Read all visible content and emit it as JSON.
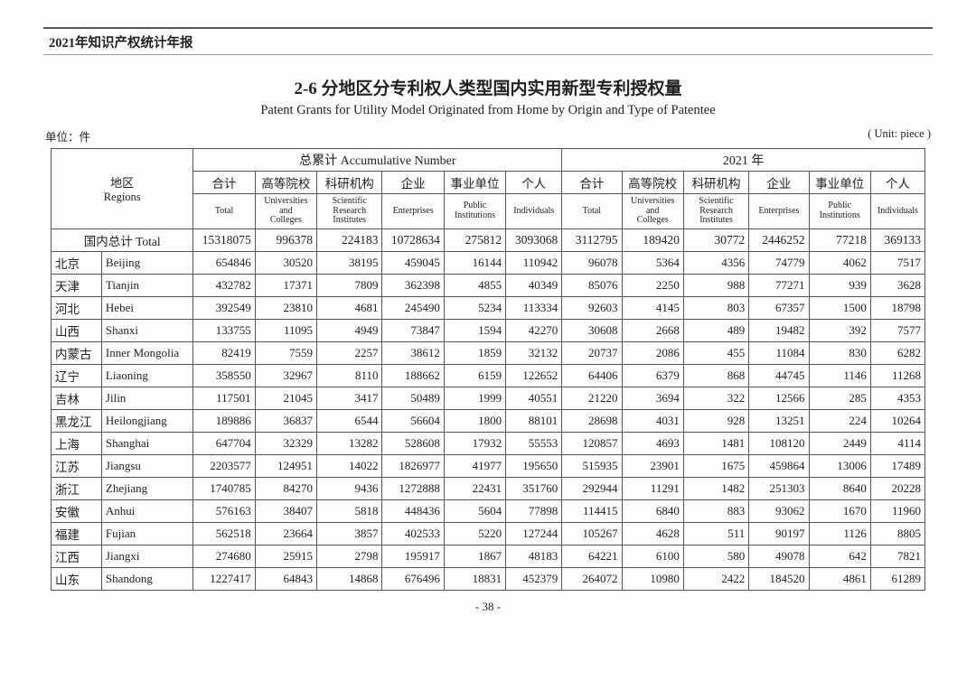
{
  "header": "2021年知识产权统计年报",
  "title_cn": "2-6  分地区分专利权人类型国内实用新型专利授权量",
  "title_en": "Patent Grants for Utility Model Originated from Home by Origin and Type of Patentee",
  "unit_left": "单位：件",
  "unit_right": "( Unit: piece )",
  "page_num": "- 38 -",
  "groups": {
    "acc": "总累计 Accumulative Number",
    "yr": "2021 年"
  },
  "region_label": {
    "cn": "地区",
    "en": "Regions"
  },
  "cols_cn": [
    "合计",
    "高等院校",
    "科研机构",
    "企业",
    "事业单位",
    "个人"
  ],
  "cols_en": [
    "Total",
    "Universities and Colleges",
    "Scientific Research Institutes",
    "Enterprises",
    "Public Institutions",
    "Individuals"
  ],
  "total_label": "国内总计 Total",
  "total": {
    "acc": [
      "15318075",
      "996378",
      "224183",
      "10728634",
      "275812",
      "3093068"
    ],
    "yr": [
      "3112795",
      "189420",
      "30772",
      "2446252",
      "77218",
      "369133"
    ]
  },
  "rows": [
    {
      "cn": "北京",
      "en": "Beijing",
      "acc": [
        "654846",
        "30520",
        "38195",
        "459045",
        "16144",
        "110942"
      ],
      "yr": [
        "96078",
        "5364",
        "4356",
        "74779",
        "4062",
        "7517"
      ]
    },
    {
      "cn": "天津",
      "en": "Tianjin",
      "acc": [
        "432782",
        "17371",
        "7809",
        "362398",
        "4855",
        "40349"
      ],
      "yr": [
        "85076",
        "2250",
        "988",
        "77271",
        "939",
        "3628"
      ]
    },
    {
      "cn": "河北",
      "en": "Hebei",
      "acc": [
        "392549",
        "23810",
        "4681",
        "245490",
        "5234",
        "113334"
      ],
      "yr": [
        "92603",
        "4145",
        "803",
        "67357",
        "1500",
        "18798"
      ]
    },
    {
      "cn": "山西",
      "en": "Shanxi",
      "acc": [
        "133755",
        "11095",
        "4949",
        "73847",
        "1594",
        "42270"
      ],
      "yr": [
        "30608",
        "2668",
        "489",
        "19482",
        "392",
        "7577"
      ]
    },
    {
      "cn": "内蒙古",
      "en": "Inner Mongolia",
      "acc": [
        "82419",
        "7559",
        "2257",
        "38612",
        "1859",
        "32132"
      ],
      "yr": [
        "20737",
        "2086",
        "455",
        "11084",
        "830",
        "6282"
      ]
    },
    {
      "cn": "辽宁",
      "en": "Liaoning",
      "acc": [
        "358550",
        "32967",
        "8110",
        "188662",
        "6159",
        "122652"
      ],
      "yr": [
        "64406",
        "6379",
        "868",
        "44745",
        "1146",
        "11268"
      ]
    },
    {
      "cn": "吉林",
      "en": "Jilin",
      "acc": [
        "117501",
        "21045",
        "3417",
        "50489",
        "1999",
        "40551"
      ],
      "yr": [
        "21220",
        "3694",
        "322",
        "12566",
        "285",
        "4353"
      ]
    },
    {
      "cn": "黑龙江",
      "en": "Heilongjiang",
      "acc": [
        "189886",
        "36837",
        "6544",
        "56604",
        "1800",
        "88101"
      ],
      "yr": [
        "28698",
        "4031",
        "928",
        "13251",
        "224",
        "10264"
      ]
    },
    {
      "cn": "上海",
      "en": "Shanghai",
      "acc": [
        "647704",
        "32329",
        "13282",
        "528608",
        "17932",
        "55553"
      ],
      "yr": [
        "120857",
        "4693",
        "1481",
        "108120",
        "2449",
        "4114"
      ]
    },
    {
      "cn": "江苏",
      "en": "Jiangsu",
      "acc": [
        "2203577",
        "124951",
        "14022",
        "1826977",
        "41977",
        "195650"
      ],
      "yr": [
        "515935",
        "23901",
        "1675",
        "459864",
        "13006",
        "17489"
      ]
    },
    {
      "cn": "浙江",
      "en": "Zhejiang",
      "acc": [
        "1740785",
        "84270",
        "9436",
        "1272888",
        "22431",
        "351760"
      ],
      "yr": [
        "292944",
        "11291",
        "1482",
        "251303",
        "8640",
        "20228"
      ]
    },
    {
      "cn": "安徽",
      "en": "Anhui",
      "acc": [
        "576163",
        "38407",
        "5818",
        "448436",
        "5604",
        "77898"
      ],
      "yr": [
        "114415",
        "6840",
        "883",
        "93062",
        "1670",
        "11960"
      ]
    },
    {
      "cn": "福建",
      "en": "Fujian",
      "acc": [
        "562518",
        "23664",
        "3857",
        "402533",
        "5220",
        "127244"
      ],
      "yr": [
        "105267",
        "4628",
        "511",
        "90197",
        "1126",
        "8805"
      ]
    },
    {
      "cn": "江西",
      "en": "Jiangxi",
      "acc": [
        "274680",
        "25915",
        "2798",
        "195917",
        "1867",
        "48183"
      ],
      "yr": [
        "64221",
        "6100",
        "580",
        "49078",
        "642",
        "7821"
      ]
    },
    {
      "cn": "山东",
      "en": "Shandong",
      "acc": [
        "1227417",
        "64843",
        "14868",
        "676496",
        "18831",
        "452379"
      ],
      "yr": [
        "264072",
        "10980",
        "2422",
        "184520",
        "4861",
        "61289"
      ]
    }
  ]
}
